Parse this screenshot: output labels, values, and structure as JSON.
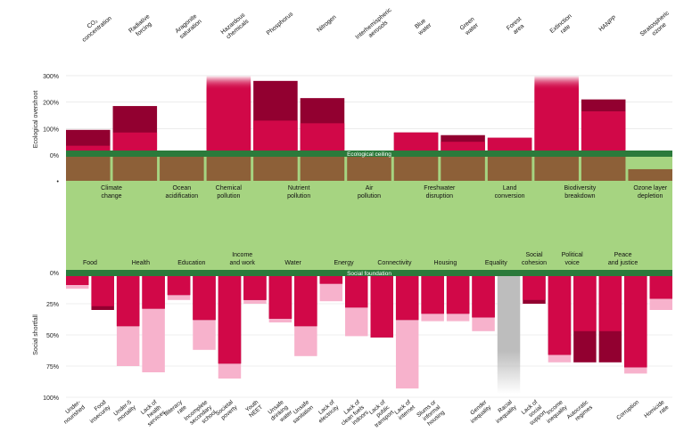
{
  "chart_data": {
    "type": "bar",
    "ylabel_top": "Ecological overshoot",
    "ylabel_bottom": "Social shortfall",
    "ecological_ceiling_label": "Ecological ceiling",
    "social_foundation_label": "Social foundation",
    "top_ticks": [
      "300%",
      "200%",
      "100%",
      "0%",
      "•"
    ],
    "bottom_ticks": [
      "0%",
      "25%",
      "50%",
      "75%",
      "100%"
    ],
    "colors": {
      "dark_red": "#920030",
      "red": "#d10848",
      "pink": "#f7b2cc",
      "brown": "#8d6038",
      "green_band": "#2b7a3b",
      "doughnut": "#a6d481",
      "grey": "#bdbdbd"
    },
    "ecological_groups": [
      {
        "label": "Climate\nchange"
      },
      {
        "label": "Ocean\nacidification"
      },
      {
        "label": "Chemical\npollution"
      },
      {
        "label": "Nutrient\npollution"
      },
      {
        "label": "Air\npollution"
      },
      {
        "label": "Freshwater\ndisruption"
      },
      {
        "label": "Land\nconversion"
      },
      {
        "label": "Biodiversity\nbreakdown"
      },
      {
        "label": "Ozone layer\ndepletion"
      }
    ],
    "ecological_indicators": [
      {
        "label": "CO₂\nconcentration",
        "red": 35,
        "dark": 95,
        "brown": 1
      },
      {
        "label": "Radiative\nforcing",
        "red": 85,
        "dark": 185,
        "brown": 1
      },
      {
        "label": "Aragonite\nsaturation",
        "red": 0,
        "dark": 0,
        "brown": 1
      },
      {
        "label": "Hazardous\nchemicals",
        "red": 300,
        "dark": 300,
        "brown": 1,
        "beyond": true
      },
      {
        "label": "Phosphorus",
        "red": 130,
        "dark": 280,
        "brown": 1
      },
      {
        "label": "Nitrogen",
        "red": 120,
        "dark": 215,
        "brown": 1
      },
      {
        "label": "Interhemispheric\naerosols",
        "red": 0,
        "dark": 0,
        "brown": 1
      },
      {
        "label": "Blue\nwater",
        "red": 85,
        "dark": 85,
        "brown": 1
      },
      {
        "label": "Green\nwater",
        "red": 50,
        "dark": 75,
        "brown": 1
      },
      {
        "label": "Forest\narea",
        "red": 65,
        "dark": 65,
        "brown": 1
      },
      {
        "label": "Extinction\nrate",
        "red": 300,
        "dark": 300,
        "brown": 1,
        "beyond": true
      },
      {
        "label": "HANPP",
        "red": 165,
        "dark": 210,
        "brown": 1
      },
      {
        "label": "Stratospheric\nozone",
        "red": 0,
        "dark": 0,
        "brown": 0.45
      }
    ],
    "social_groups": [
      {
        "label": "Food",
        "count": 2
      },
      {
        "label": "Health",
        "count": 2
      },
      {
        "label": "Education",
        "count": 2
      },
      {
        "label": "Income\nand work",
        "count": 2
      },
      {
        "label": "Water",
        "count": 2
      },
      {
        "label": "Energy",
        "count": 2
      },
      {
        "label": "Connectivity",
        "count": 2
      },
      {
        "label": "Housing",
        "count": 2
      },
      {
        "label": "Equality",
        "count": 2
      },
      {
        "label": "Social\ncohesion",
        "count": 1
      },
      {
        "label": "Political\nvoice",
        "count": 2
      },
      {
        "label": "Peace\nand justice",
        "count": 2
      }
    ],
    "social_indicators": [
      {
        "label": "Under-\nnourished",
        "red": 10,
        "pink": 13,
        "dark": 10
      },
      {
        "label": "Food\ninsecurity",
        "red": 27,
        "pink": 27,
        "dark": 30
      },
      {
        "label": "Under-5\nmortality",
        "red": 43,
        "pink": 75,
        "dark": 43
      },
      {
        "label": "Lack of\nhealth\nservices",
        "red": 29,
        "pink": 80,
        "dark": 29
      },
      {
        "label": "Illiteracy\nrate",
        "red": 18,
        "pink": 22,
        "dark": 18
      },
      {
        "label": "Incomplete\nsecondary\nschool",
        "red": 38,
        "pink": 62,
        "dark": 38
      },
      {
        "label": "Societal\npoverty",
        "red": 73,
        "pink": 85,
        "dark": 73
      },
      {
        "label": "Youth\nNEET",
        "red": 22,
        "pink": 25,
        "dark": 22
      },
      {
        "label": "Unsafe\ndrinking\nwater",
        "red": 37,
        "pink": 40,
        "dark": 37
      },
      {
        "label": "Unsafe\nsanitation",
        "red": 43,
        "pink": 67,
        "dark": 43
      },
      {
        "label": "Lack of\nelectricity",
        "red": 9,
        "pink": 23,
        "dark": 9
      },
      {
        "label": "Lack of\nclean fuels\nindoors",
        "red": 28,
        "pink": 51,
        "dark": 28
      },
      {
        "label": "Lack of\npublic\ntransport",
        "red": 52,
        "pink": 52,
        "dark": 52
      },
      {
        "label": "Lack of\ninternet",
        "red": 38,
        "pink": 93,
        "dark": 38
      },
      {
        "label": "Slums or\ninformal\nhousing",
        "red": 33,
        "pink": 39,
        "dark": 33
      },
      {
        "label": "",
        "red": 33,
        "pink": 39,
        "dark": 33
      },
      {
        "label": "Gender\ninequality",
        "red": 36,
        "pink": 47,
        "dark": 36
      },
      {
        "label": "Racial\ninequality",
        "red": 0,
        "pink": 0,
        "dark": 0,
        "grey": 97
      },
      {
        "label": "Lack of\nsocial\nsupport",
        "red": 22,
        "pink": 22,
        "dark": 25
      },
      {
        "label": "Income\ninequality",
        "red": 66,
        "pink": 72,
        "dark": 66
      },
      {
        "label": "Autocratic\nregimes",
        "red": 47,
        "pink": 47,
        "dark": 72
      },
      {
        "label": "",
        "red": 47,
        "pink": 47,
        "dark": 72
      },
      {
        "label": "Corruption",
        "red": 76,
        "pink": 81,
        "dark": 76
      },
      {
        "label": "Homicide\nrate",
        "red": 21,
        "pink": 30,
        "dark": 21
      }
    ]
  }
}
